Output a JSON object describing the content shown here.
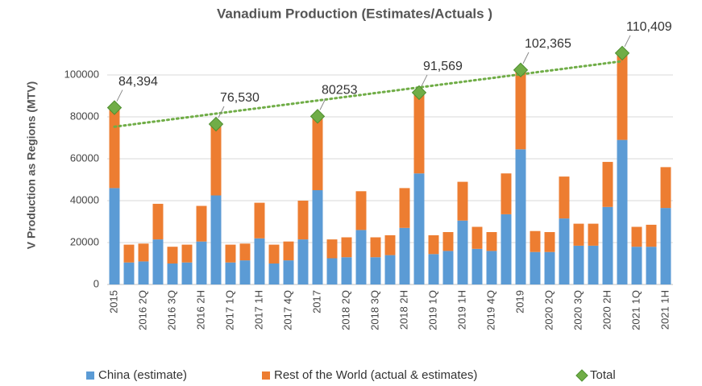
{
  "chart_data": {
    "type": "bar",
    "title": "Vanadium Production (Estimates/Actuals )",
    "y_label": "V Production as Regions (MTV)",
    "categories": [
      "2015",
      null,
      "2016 2Q",
      null,
      "2016 3Q",
      null,
      "2016 2H",
      null,
      "2017 1Q",
      null,
      "2017 1H",
      null,
      "2017 4Q",
      null,
      "2017",
      null,
      "2018 2Q",
      null,
      "2018 3Q",
      null,
      "2018 2H",
      null,
      "2019 1Q",
      null,
      "2019 1H",
      null,
      "2019 4Q",
      null,
      "2019",
      null,
      "2020 2Q",
      null,
      "2020 3Q",
      null,
      "2020 2H",
      null,
      "2021 1Q",
      null,
      "2021 1H"
    ],
    "series": [
      {
        "name": "China (estimate)",
        "color": "#5b9bd5",
        "values": [
          46000,
          10500,
          11000,
          21500,
          10000,
          10500,
          20500,
          42500,
          10500,
          11500,
          22000,
          10000,
          11500,
          21500,
          45000,
          12500,
          13000,
          26000,
          13000,
          14000,
          27000,
          53000,
          14500,
          16000,
          30500,
          17000,
          16000,
          33500,
          64500,
          15500,
          15500,
          31500,
          18500,
          18500,
          37000,
          69000,
          18000,
          18000,
          36500
        ]
      },
      {
        "name": "Rest of the World (actual & estimates)",
        "color": "#ed7d31",
        "values": [
          38394,
          8500,
          8500,
          17000,
          8000,
          8500,
          17000,
          34030,
          8500,
          8000,
          17000,
          9000,
          9000,
          18500,
          35253,
          9000,
          9500,
          18500,
          9500,
          9500,
          19000,
          38569,
          9000,
          9000,
          18500,
          10500,
          9000,
          19500,
          37865,
          10000,
          9500,
          20000,
          10500,
          10500,
          21500,
          41409,
          9500,
          10500,
          19500
        ]
      },
      {
        "name": "Total",
        "color": "#70ad47",
        "type": "scatter",
        "values": [
          84394,
          null,
          null,
          null,
          null,
          null,
          null,
          76530,
          null,
          null,
          null,
          null,
          null,
          null,
          80253,
          null,
          null,
          null,
          null,
          null,
          null,
          91569,
          null,
          null,
          null,
          null,
          null,
          null,
          102365,
          null,
          null,
          null,
          null,
          null,
          null,
          110409,
          null,
          null,
          null
        ],
        "value_labels": [
          "84,394",
          null,
          null,
          null,
          null,
          null,
          null,
          "76,530",
          null,
          null,
          null,
          null,
          null,
          null,
          "80253",
          null,
          null,
          null,
          null,
          null,
          null,
          "91,569",
          null,
          null,
          null,
          null,
          null,
          null,
          "102,365",
          null,
          null,
          null,
          null,
          null,
          null,
          "110,409",
          null,
          null,
          null
        ],
        "trendline": true
      }
    ],
    "ylim": [
      0,
      120000
    ],
    "yticks": [
      0,
      20000,
      40000,
      60000,
      80000,
      100000
    ],
    "grid": true,
    "legend": "bottom",
    "stacked": true
  }
}
